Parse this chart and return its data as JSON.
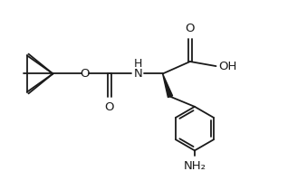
{
  "bg_color": "#ffffff",
  "line_color": "#1a1a1a",
  "line_width": 1.3,
  "font_size": 9.5,
  "fig_width": 3.39,
  "fig_height": 2.0,
  "dpi": 100,
  "xlim": [
    0,
    10
  ],
  "ylim": [
    0,
    5.9
  ]
}
